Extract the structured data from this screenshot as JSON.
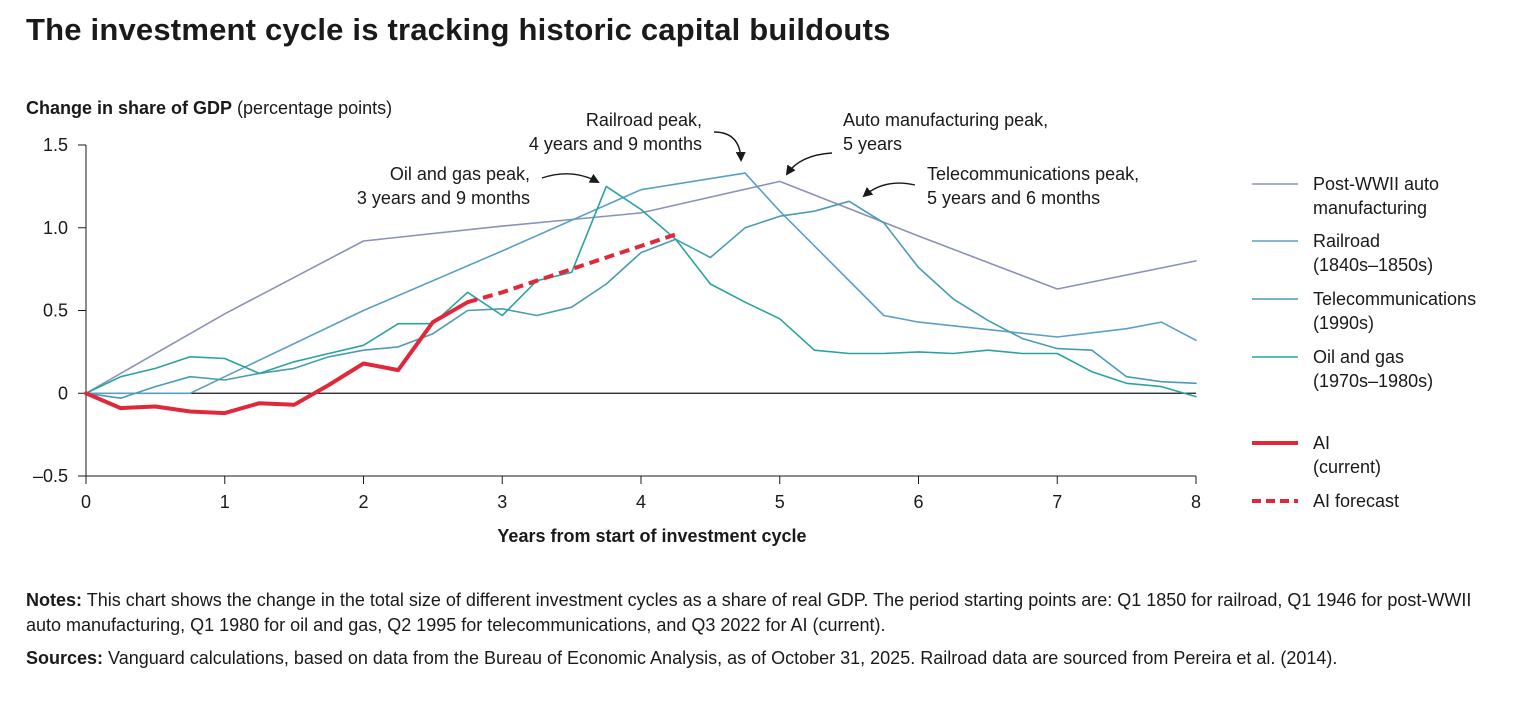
{
  "title": "The investment cycle is tracking historic capital buildouts",
  "notes": {
    "notes_label": "Notes:",
    "notes_text": "This chart shows the change in the total size of different investment cycles as a share of real GDP. The period starting points are: Q1 1850 for railroad, Q1 1946 for post-WWII auto manufacturing, Q1 1980 for oil and gas, Q2 1995 for telecommunications, and Q3 2022 for AI (current).",
    "sources_label": "Sources:",
    "sources_text": "Vanguard calculations, based on data from the Bureau of Economic Analysis, as of October 31, 2025. Railroad data are sourced from Pereira et al. (2014)."
  },
  "chart_data": {
    "type": "line",
    "title": "The investment cycle is tracking historic capital buildouts",
    "ylabel_bold": "Change in share of GDP",
    "ylabel_rest": " (percentage points)",
    "xlabel": "Years from start of investment cycle",
    "xlim": [
      0,
      8
    ],
    "ylim": [
      -0.5,
      1.5
    ],
    "xticks": [
      0,
      1,
      2,
      3,
      4,
      5,
      6,
      7,
      8
    ],
    "xtick_labels": [
      "0",
      "1",
      "2",
      "3",
      "4",
      "5",
      "6",
      "7",
      "8"
    ],
    "yticks": [
      -0.5,
      0,
      0.5,
      1.0,
      1.5
    ],
    "ytick_labels": [
      "–0.5",
      "0",
      "0.5",
      "1.0",
      "1.5"
    ],
    "legend_position": "right",
    "series": [
      {
        "name": "Post-WWII auto manufacturing",
        "legend_lines": [
          "Post-WWII auto",
          "manufacturing"
        ],
        "color": "#8a92b8",
        "width": 1.6,
        "dash": false,
        "points": [
          [
            0,
            0
          ],
          [
            1,
            0.48
          ],
          [
            2,
            0.92
          ],
          [
            3,
            1.01
          ],
          [
            4,
            1.09
          ],
          [
            5,
            1.28
          ],
          [
            6,
            0.95
          ],
          [
            7,
            0.63
          ],
          [
            8,
            0.8
          ]
        ]
      },
      {
        "name": "Railroad (1840s–1850s)",
        "legend_lines": [
          "Railroad",
          "(1840s–1850s)"
        ],
        "color": "#5a9fc7",
        "width": 1.6,
        "dash": false,
        "points": [
          [
            0,
            0
          ],
          [
            0.75,
            0
          ],
          [
            1,
            0.1
          ],
          [
            2,
            0.5
          ],
          [
            3,
            0.86
          ],
          [
            4,
            1.23
          ],
          [
            4.75,
            1.33
          ],
          [
            5,
            1.1
          ],
          [
            5.75,
            0.47
          ],
          [
            6,
            0.43
          ],
          [
            7,
            0.34
          ],
          [
            7.5,
            0.39
          ],
          [
            7.75,
            0.43
          ],
          [
            8,
            0.32
          ]
        ]
      },
      {
        "name": "Telecommunications (1990s)",
        "legend_lines": [
          "Telecommunications",
          "(1990s)"
        ],
        "color": "#4a9cb3",
        "width": 1.6,
        "dash": false,
        "points": [
          [
            0,
            0
          ],
          [
            0.25,
            -0.03
          ],
          [
            0.5,
            0.04
          ],
          [
            0.75,
            0.1
          ],
          [
            1,
            0.08
          ],
          [
            1.25,
            0.12
          ],
          [
            1.5,
            0.15
          ],
          [
            1.75,
            0.22
          ],
          [
            2,
            0.26
          ],
          [
            2.25,
            0.28
          ],
          [
            2.5,
            0.36
          ],
          [
            2.75,
            0.5
          ],
          [
            3,
            0.51
          ],
          [
            3.25,
            0.47
          ],
          [
            3.5,
            0.52
          ],
          [
            3.75,
            0.66
          ],
          [
            4,
            0.85
          ],
          [
            4.25,
            0.93
          ],
          [
            4.5,
            0.82
          ],
          [
            4.75,
            1.0
          ],
          [
            5,
            1.07
          ],
          [
            5.25,
            1.1
          ],
          [
            5.5,
            1.16
          ],
          [
            5.75,
            1.03
          ],
          [
            6,
            0.76
          ],
          [
            6.25,
            0.57
          ],
          [
            6.5,
            0.44
          ],
          [
            6.75,
            0.33
          ],
          [
            7,
            0.27
          ],
          [
            7.25,
            0.26
          ],
          [
            7.5,
            0.1
          ],
          [
            7.75,
            0.07
          ],
          [
            8,
            0.06
          ]
        ]
      },
      {
        "name": "Oil and gas (1970s–1980s)",
        "legend_lines": [
          "Oil and gas",
          "(1970s–1980s)"
        ],
        "color": "#2aa3a0",
        "width": 1.6,
        "dash": false,
        "points": [
          [
            0,
            0
          ],
          [
            0.25,
            0.1
          ],
          [
            0.5,
            0.15
          ],
          [
            0.75,
            0.22
          ],
          [
            1,
            0.21
          ],
          [
            1.25,
            0.12
          ],
          [
            1.5,
            0.19
          ],
          [
            1.75,
            0.24
          ],
          [
            2,
            0.29
          ],
          [
            2.25,
            0.42
          ],
          [
            2.5,
            0.42
          ],
          [
            2.75,
            0.61
          ],
          [
            3,
            0.47
          ],
          [
            3.25,
            0.68
          ],
          [
            3.5,
            0.73
          ],
          [
            3.75,
            1.25
          ],
          [
            4,
            1.11
          ],
          [
            4.25,
            0.93
          ],
          [
            4.5,
            0.66
          ],
          [
            4.75,
            0.55
          ],
          [
            5,
            0.45
          ],
          [
            5.25,
            0.26
          ],
          [
            5.5,
            0.24
          ],
          [
            5.75,
            0.24
          ],
          [
            6,
            0.25
          ],
          [
            6.25,
            0.24
          ],
          [
            6.5,
            0.26
          ],
          [
            6.75,
            0.24
          ],
          [
            7,
            0.24
          ],
          [
            7.25,
            0.13
          ],
          [
            7.5,
            0.06
          ],
          [
            7.75,
            0.04
          ],
          [
            8,
            -0.02
          ]
        ]
      },
      {
        "name": "AI (current)",
        "legend_lines": [
          "AI",
          "(current)"
        ],
        "color": "#e0283a",
        "width": 4,
        "dash": false,
        "points": [
          [
            0,
            0
          ],
          [
            0.25,
            -0.09
          ],
          [
            0.5,
            -0.08
          ],
          [
            0.75,
            -0.11
          ],
          [
            1,
            -0.12
          ],
          [
            1.25,
            -0.06
          ],
          [
            1.5,
            -0.07
          ],
          [
            1.75,
            0.05
          ],
          [
            2,
            0.18
          ],
          [
            2.25,
            0.14
          ],
          [
            2.5,
            0.43
          ],
          [
            2.75,
            0.55
          ]
        ]
      },
      {
        "name": "AI forecast",
        "legend_lines": [
          "AI forecast"
        ],
        "color": "#e0283a",
        "width": 4,
        "dash": true,
        "points": [
          [
            2.75,
            0.55
          ],
          [
            3.0,
            0.61
          ],
          [
            3.25,
            0.68
          ],
          [
            3.5,
            0.75
          ],
          [
            3.75,
            0.82
          ],
          [
            4.0,
            0.89
          ],
          [
            4.25,
            0.96
          ]
        ]
      }
    ],
    "annotations": [
      {
        "lines": [
          "Railroad peak,",
          "4 years and 9 months"
        ],
        "anchor": "end",
        "target": [
          4.75,
          1.33
        ]
      },
      {
        "lines": [
          "Auto manufacturing peak,",
          "5 years"
        ],
        "anchor": "start",
        "target": [
          5.0,
          1.28
        ]
      },
      {
        "lines": [
          "Oil and gas peak,",
          "3 years and 9 months"
        ],
        "anchor": "end",
        "target": [
          3.75,
          1.25
        ]
      },
      {
        "lines": [
          "Telecommunications peak,",
          "5 years and 6 months"
        ],
        "anchor": "start",
        "target": [
          5.55,
          1.16
        ]
      }
    ]
  }
}
